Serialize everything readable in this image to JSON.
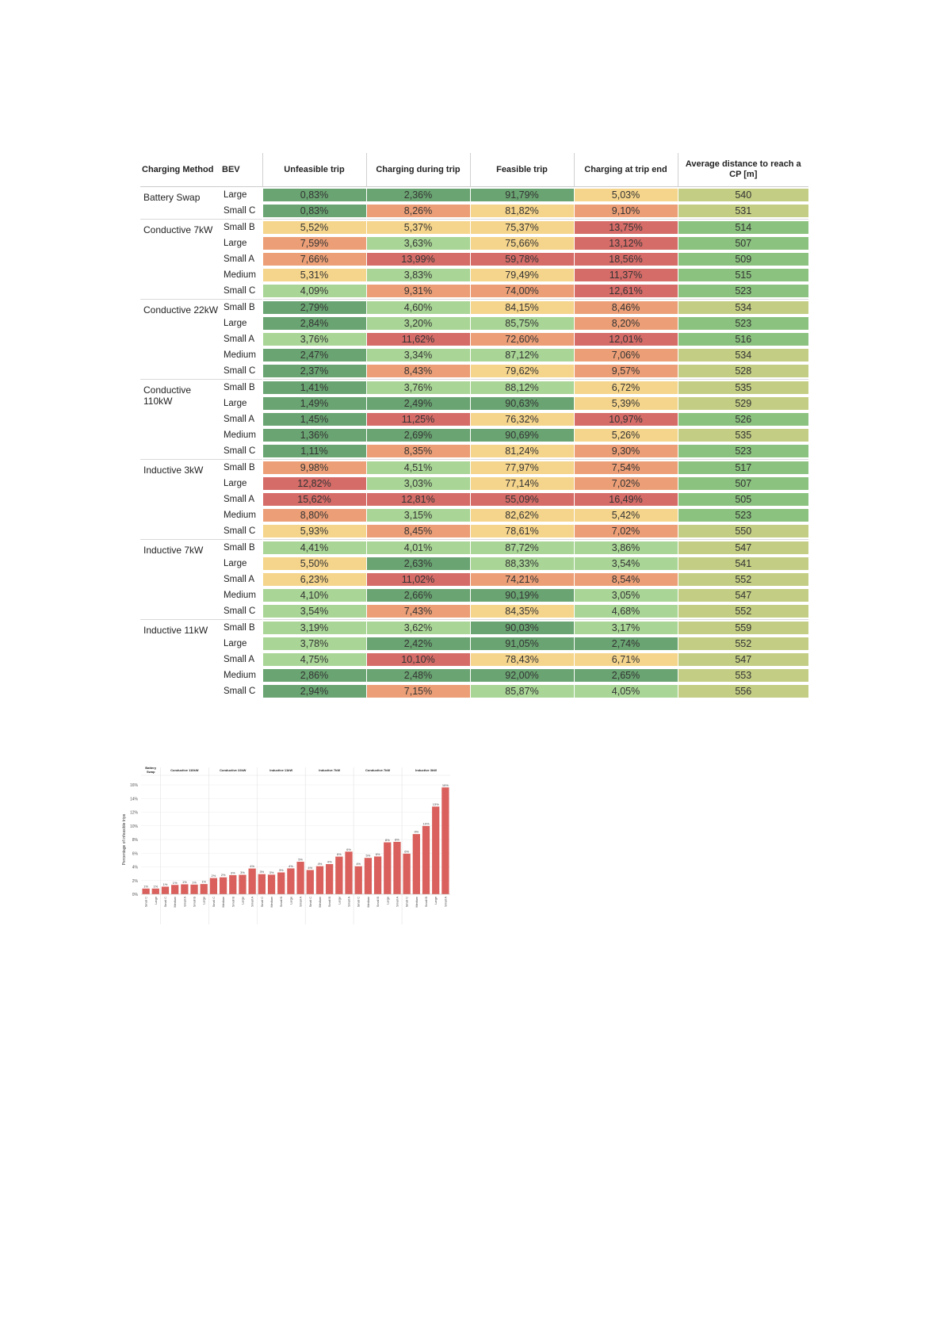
{
  "table": {
    "headers": {
      "method": "Charging Method",
      "bev": "BEV",
      "unfeasible": "Unfeasible trip",
      "charging_during": "Charging during trip",
      "feasible": "Feasible trip",
      "charging_end": "Charging at trip end",
      "avg_distance": "Average distance to reach a CP [m]"
    },
    "groups": [
      {
        "method": "Battery Swap",
        "rows": [
          {
            "bev": "Large",
            "u": "0,83%",
            "d": "2,36%",
            "f": "91,79%",
            "e": "5,03%",
            "dist": "540",
            "cu": "c1",
            "cd": "c1",
            "cf": "c1",
            "ce": "c3"
          },
          {
            "bev": "Small C",
            "u": "0,83%",
            "d": "8,26%",
            "f": "81,82%",
            "e": "9,10%",
            "dist": "531",
            "cu": "c1",
            "cd": "c4",
            "cf": "c3",
            "ce": "c4"
          }
        ]
      },
      {
        "method": "Conductive 7kW",
        "rows": [
          {
            "bev": "Small B",
            "u": "5,52%",
            "d": "5,37%",
            "f": "75,37%",
            "e": "13,75%",
            "dist": "514",
            "cu": "c3",
            "cd": "c3",
            "cf": "c3",
            "ce": "c5"
          },
          {
            "bev": "Large",
            "u": "7,59%",
            "d": "3,63%",
            "f": "75,66%",
            "e": "13,12%",
            "dist": "507",
            "cu": "c4",
            "cd": "c2",
            "cf": "c3",
            "ce": "c5"
          },
          {
            "bev": "Small A",
            "u": "7,66%",
            "d": "13,99%",
            "f": "59,78%",
            "e": "18,56%",
            "dist": "509",
            "cu": "c4",
            "cd": "c5",
            "cf": "c5",
            "ce": "c5"
          },
          {
            "bev": "Medium",
            "u": "5,31%",
            "d": "3,83%",
            "f": "79,49%",
            "e": "11,37%",
            "dist": "515",
            "cu": "c3",
            "cd": "c2",
            "cf": "c3",
            "ce": "c5"
          },
          {
            "bev": "Small C",
            "u": "4,09%",
            "d": "9,31%",
            "f": "74,00%",
            "e": "12,61%",
            "dist": "523",
            "cu": "c2",
            "cd": "c4",
            "cf": "c4",
            "ce": "c5"
          }
        ]
      },
      {
        "method": "Conductive 22kW",
        "rows": [
          {
            "bev": "Small B",
            "u": "2,79%",
            "d": "4,60%",
            "f": "84,15%",
            "e": "8,46%",
            "dist": "534",
            "cu": "c1",
            "cd": "c2",
            "cf": "c3",
            "ce": "c4"
          },
          {
            "bev": "Large",
            "u": "2,84%",
            "d": "3,20%",
            "f": "85,75%",
            "e": "8,20%",
            "dist": "523",
            "cu": "c1",
            "cd": "c2",
            "cf": "c2",
            "ce": "c4"
          },
          {
            "bev": "Small A",
            "u": "3,76%",
            "d": "11,62%",
            "f": "72,60%",
            "e": "12,01%",
            "dist": "516",
            "cu": "c2",
            "cd": "c5",
            "cf": "c4",
            "ce": "c5"
          },
          {
            "bev": "Medium",
            "u": "2,47%",
            "d": "3,34%",
            "f": "87,12%",
            "e": "7,06%",
            "dist": "534",
            "cu": "c1",
            "cd": "c2",
            "cf": "c2",
            "ce": "c4"
          },
          {
            "bev": "Small C",
            "u": "2,37%",
            "d": "8,43%",
            "f": "79,62%",
            "e": "9,57%",
            "dist": "528",
            "cu": "c1",
            "cd": "c4",
            "cf": "c3",
            "ce": "c4"
          }
        ]
      },
      {
        "method": "Conductive 110kW",
        "rows": [
          {
            "bev": "Small B",
            "u": "1,41%",
            "d": "3,76%",
            "f": "88,12%",
            "e": "6,72%",
            "dist": "535",
            "cu": "c1",
            "cd": "c2",
            "cf": "c2",
            "ce": "c3"
          },
          {
            "bev": "Large",
            "u": "1,49%",
            "d": "2,49%",
            "f": "90,63%",
            "e": "5,39%",
            "dist": "529",
            "cu": "c1",
            "cd": "c1",
            "cf": "c1",
            "ce": "c3"
          },
          {
            "bev": "Small A",
            "u": "1,45%",
            "d": "11,25%",
            "f": "76,32%",
            "e": "10,97%",
            "dist": "526",
            "cu": "c1",
            "cd": "c5",
            "cf": "c3",
            "ce": "c5"
          },
          {
            "bev": "Medium",
            "u": "1,36%",
            "d": "2,69%",
            "f": "90,69%",
            "e": "5,26%",
            "dist": "535",
            "cu": "c1",
            "cd": "c1",
            "cf": "c1",
            "ce": "c3"
          },
          {
            "bev": "Small C",
            "u": "1,11%",
            "d": "8,35%",
            "f": "81,24%",
            "e": "9,30%",
            "dist": "523",
            "cu": "c1",
            "cd": "c4",
            "cf": "c3",
            "ce": "c4"
          }
        ]
      },
      {
        "method": "Inductive 3kW",
        "rows": [
          {
            "bev": "Small B",
            "u": "9,98%",
            "d": "4,51%",
            "f": "77,97%",
            "e": "7,54%",
            "dist": "517",
            "cu": "c4",
            "cd": "c2",
            "cf": "c3",
            "ce": "c4"
          },
          {
            "bev": "Large",
            "u": "12,82%",
            "d": "3,03%",
            "f": "77,14%",
            "e": "7,02%",
            "dist": "507",
            "cu": "c5",
            "cd": "c2",
            "cf": "c3",
            "ce": "c4"
          },
          {
            "bev": "Small A",
            "u": "15,62%",
            "d": "12,81%",
            "f": "55,09%",
            "e": "16,49%",
            "dist": "505",
            "cu": "c5",
            "cd": "c5",
            "cf": "c5",
            "ce": "c5"
          },
          {
            "bev": "Medium",
            "u": "8,80%",
            "d": "3,15%",
            "f": "82,62%",
            "e": "5,42%",
            "dist": "523",
            "cu": "c4",
            "cd": "c2",
            "cf": "c3",
            "ce": "c3"
          },
          {
            "bev": "Small C",
            "u": "5,93%",
            "d": "8,45%",
            "f": "78,61%",
            "e": "7,02%",
            "dist": "550",
            "cu": "c3",
            "cd": "c4",
            "cf": "c3",
            "ce": "c4"
          }
        ]
      },
      {
        "method": "Inductive 7kW",
        "rows": [
          {
            "bev": "Small B",
            "u": "4,41%",
            "d": "4,01%",
            "f": "87,72%",
            "e": "3,86%",
            "dist": "547",
            "cu": "c2",
            "cd": "c2",
            "cf": "c2",
            "ce": "c2"
          },
          {
            "bev": "Large",
            "u": "5,50%",
            "d": "2,63%",
            "f": "88,33%",
            "e": "3,54%",
            "dist": "541",
            "cu": "c3",
            "cd": "c1",
            "cf": "c2",
            "ce": "c2"
          },
          {
            "bev": "Small A",
            "u": "6,23%",
            "d": "11,02%",
            "f": "74,21%",
            "e": "8,54%",
            "dist": "552",
            "cu": "c3",
            "cd": "c5",
            "cf": "c4",
            "ce": "c4"
          },
          {
            "bev": "Medium",
            "u": "4,10%",
            "d": "2,66%",
            "f": "90,19%",
            "e": "3,05%",
            "dist": "547",
            "cu": "c2",
            "cd": "c1",
            "cf": "c1",
            "ce": "c2"
          },
          {
            "bev": "Small C",
            "u": "3,54%",
            "d": "7,43%",
            "f": "84,35%",
            "e": "4,68%",
            "dist": "552",
            "cu": "c2",
            "cd": "c4",
            "cf": "c3",
            "ce": "c2"
          }
        ]
      },
      {
        "method": "Inductive 11kW",
        "rows": [
          {
            "bev": "Small B",
            "u": "3,19%",
            "d": "3,62%",
            "f": "90,03%",
            "e": "3,17%",
            "dist": "559",
            "cu": "c2",
            "cd": "c2",
            "cf": "c1",
            "ce": "c2"
          },
          {
            "bev": "Large",
            "u": "3,78%",
            "d": "2,42%",
            "f": "91,05%",
            "e": "2,74%",
            "dist": "552",
            "cu": "c2",
            "cd": "c1",
            "cf": "c1",
            "ce": "c1"
          },
          {
            "bev": "Small A",
            "u": "4,75%",
            "d": "10,10%",
            "f": "78,43%",
            "e": "6,71%",
            "dist": "547",
            "cu": "c2",
            "cd": "c5",
            "cf": "c3",
            "ce": "c3"
          },
          {
            "bev": "Medium",
            "u": "2,86%",
            "d": "2,48%",
            "f": "92,00%",
            "e": "2,65%",
            "dist": "553",
            "cu": "c1",
            "cd": "c1",
            "cf": "c1",
            "ce": "c1"
          },
          {
            "bev": "Small C",
            "u": "2,94%",
            "d": "7,15%",
            "f": "85,87%",
            "e": "4,05%",
            "dist": "556",
            "cu": "c1",
            "cd": "c4",
            "cf": "c2",
            "ce": "c2"
          }
        ]
      }
    ]
  },
  "chart_data": {
    "type": "bar",
    "ylabel": "Percentage of infeasible trips",
    "ylim": [
      0,
      16
    ],
    "yticks": [
      "0%",
      "2%",
      "4%",
      "6%",
      "8%",
      "10%",
      "12%",
      "14%",
      "16%"
    ],
    "groups": [
      {
        "name": "Battery Swap",
        "categories": [
          "Small C",
          "Large"
        ],
        "values": [
          0.83,
          0.83
        ],
        "labels": [
          "1%",
          "1%"
        ]
      },
      {
        "name": "Conductive 110kW",
        "categories": [
          "Small C",
          "Medium",
          "Small A",
          "Small B",
          "Large"
        ],
        "values": [
          1.11,
          1.36,
          1.45,
          1.41,
          1.49
        ],
        "labels": [
          "1%",
          "1%",
          "1%",
          "1%",
          "1%"
        ]
      },
      {
        "name": "Conductive 22kW",
        "categories": [
          "Small C",
          "Medium",
          "Small B",
          "Large",
          "Small A"
        ],
        "values": [
          2.37,
          2.47,
          2.79,
          2.84,
          3.76
        ],
        "labels": [
          "2%",
          "2%",
          "3%",
          "3%",
          "4%"
        ]
      },
      {
        "name": "Inductive 11kW",
        "categories": [
          "Small C",
          "Medium",
          "Small B",
          "Large",
          "Small A"
        ],
        "values": [
          2.94,
          2.86,
          3.19,
          3.78,
          4.75
        ],
        "labels": [
          "3%",
          "3%",
          "3%",
          "4%",
          "5%"
        ]
      },
      {
        "name": "Inductive 7kW",
        "categories": [
          "Small C",
          "Medium",
          "Small B",
          "Large",
          "Small A"
        ],
        "values": [
          3.54,
          4.1,
          4.41,
          5.5,
          6.23
        ],
        "labels": [
          "4%",
          "4%",
          "4%",
          "6%",
          "6%"
        ]
      },
      {
        "name": "Conductive 7kW",
        "categories": [
          "Small C",
          "Medium",
          "Small B",
          "Large",
          "Small A"
        ],
        "values": [
          4.09,
          5.31,
          5.52,
          7.59,
          7.66
        ],
        "labels": [
          "4%",
          "5%",
          "6%",
          "8%",
          "8%"
        ]
      },
      {
        "name": "Inductive 3kW",
        "categories": [
          "Small C",
          "Medium",
          "Small B",
          "Large",
          "Small A"
        ],
        "values": [
          5.93,
          8.8,
          9.98,
          12.82,
          15.62
        ],
        "labels": [
          "6%",
          "9%",
          "10%",
          "13%",
          "16%"
        ]
      }
    ],
    "bar_color": "#d9605c"
  }
}
